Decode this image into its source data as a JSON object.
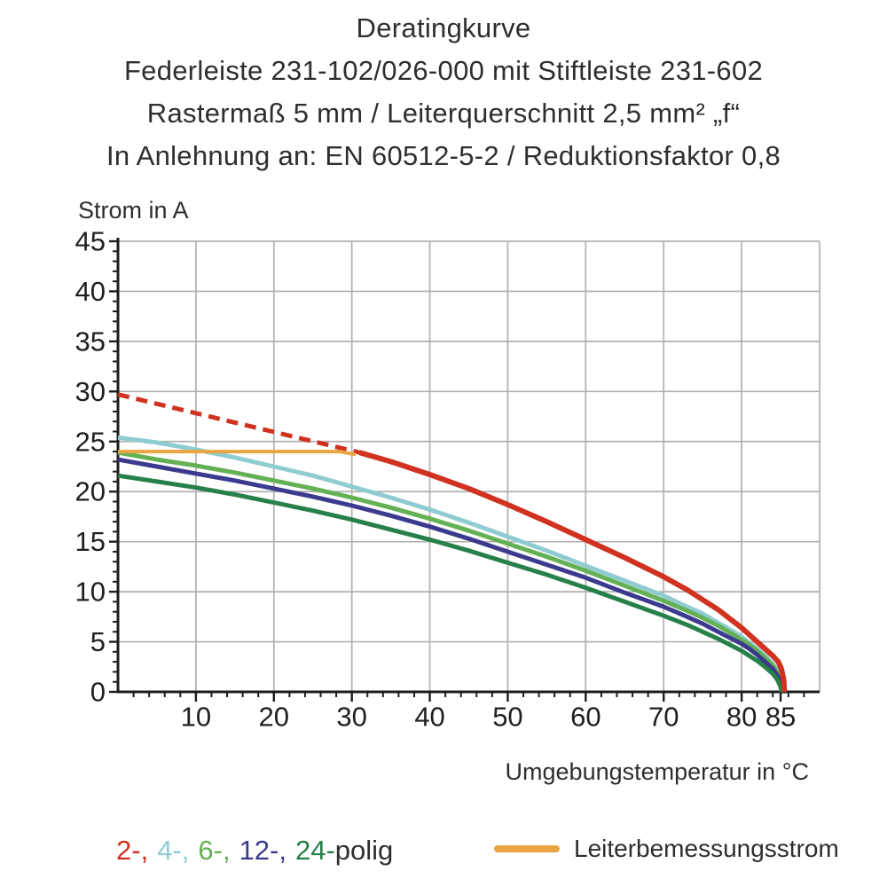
{
  "title": {
    "line1": "Deratingkurve",
    "line2": "Federleiste 231-102/026-000 mit Stiftleiste 231-602",
    "line3": "Rastermaß 5 mm / Leiterquerschnitt 2,5 mm² „f“",
    "line4": "In Anlehnung an: EN 60512-5-2 / Reduktionsfaktor 0,8"
  },
  "colors": {
    "pole2_red": "#d0321f",
    "pole4_cyan": "#8fccd1",
    "pole6_green": "#64b054",
    "pole12_navy": "#3b3a8e",
    "pole24_darkgreen": "#27804a",
    "rated_orange": "#eba442",
    "grid_gray": "#b0b0b0",
    "axis_black": "#1c1c1c"
  },
  "chart_data": {
    "type": "line",
    "title": "Deratingkurve",
    "xlabel": "Umgebungstemperatur in °C",
    "ylabel": "Strom in A",
    "xlim": [
      0,
      90
    ],
    "ylim": [
      0,
      45
    ],
    "grid": true,
    "x_major_ticks": [
      10,
      20,
      30,
      40,
      50,
      60,
      70,
      80,
      85
    ],
    "y_major_ticks": [
      0,
      5,
      10,
      15,
      20,
      25,
      30,
      35,
      40,
      45
    ],
    "x_minor_step": 2,
    "y_minor_step": 1,
    "series": [
      {
        "name": "2-polig-gestrichelt",
        "color": "#d0321f",
        "width": 5,
        "dash": "13 8",
        "points": [
          [
            0,
            29.7
          ],
          [
            31,
            23.9
          ]
        ]
      },
      {
        "name": "4-polig",
        "color": "#8fccd1",
        "width": 5,
        "dash": null,
        "points": [
          [
            0,
            25.4
          ],
          [
            5,
            24.9
          ],
          [
            10,
            24.2
          ],
          [
            15,
            23.4
          ],
          [
            20,
            22.5
          ],
          [
            25,
            21.6
          ],
          [
            30,
            20.5
          ],
          [
            35,
            19.4
          ],
          [
            40,
            18.2
          ],
          [
            45,
            16.9
          ],
          [
            50,
            15.5
          ],
          [
            55,
            14.1
          ],
          [
            60,
            12.6
          ],
          [
            65,
            11.1
          ],
          [
            70,
            9.6
          ],
          [
            73,
            8.5
          ],
          [
            75,
            7.8
          ],
          [
            77,
            6.9
          ],
          [
            79,
            6.0
          ],
          [
            80,
            5.5
          ],
          [
            81,
            4.9
          ],
          [
            82,
            4.3
          ],
          [
            83,
            3.6
          ],
          [
            84,
            2.8
          ],
          [
            84.6,
            2.1
          ],
          [
            85,
            1.4
          ],
          [
            85.25,
            0
          ]
        ]
      },
      {
        "name": "6-polig",
        "color": "#64b054",
        "width": 5,
        "dash": null,
        "points": [
          [
            0,
            23.9
          ],
          [
            5,
            23.2
          ],
          [
            10,
            22.6
          ],
          [
            15,
            21.9
          ],
          [
            20,
            21.1
          ],
          [
            25,
            20.3
          ],
          [
            30,
            19.4
          ],
          [
            35,
            18.4
          ],
          [
            40,
            17.3
          ],
          [
            45,
            16.1
          ],
          [
            50,
            14.8
          ],
          [
            55,
            13.5
          ],
          [
            60,
            12.1
          ],
          [
            65,
            10.6
          ],
          [
            70,
            9.1
          ],
          [
            73,
            8.1
          ],
          [
            75,
            7.4
          ],
          [
            77,
            6.6
          ],
          [
            79,
            5.7
          ],
          [
            80,
            5.2
          ],
          [
            81,
            4.7
          ],
          [
            82,
            4.1
          ],
          [
            83,
            3.4
          ],
          [
            84,
            2.6
          ],
          [
            84.6,
            1.9
          ],
          [
            85,
            1.2
          ],
          [
            85.2,
            0
          ]
        ]
      },
      {
        "name": "12-polig",
        "color": "#3b3a8e",
        "width": 5,
        "dash": null,
        "points": [
          [
            0,
            23.2
          ],
          [
            5,
            22.5
          ],
          [
            10,
            21.8
          ],
          [
            15,
            21.1
          ],
          [
            20,
            20.3
          ],
          [
            25,
            19.5
          ],
          [
            30,
            18.6
          ],
          [
            35,
            17.6
          ],
          [
            40,
            16.5
          ],
          [
            45,
            15.3
          ],
          [
            50,
            14.0
          ],
          [
            55,
            12.7
          ],
          [
            60,
            11.4
          ],
          [
            65,
            9.9
          ],
          [
            70,
            8.5
          ],
          [
            73,
            7.5
          ],
          [
            75,
            6.8
          ],
          [
            77,
            6.0
          ],
          [
            79,
            5.2
          ],
          [
            80,
            4.8
          ],
          [
            81,
            4.3
          ],
          [
            82,
            3.7
          ],
          [
            83,
            3.0
          ],
          [
            84,
            2.3
          ],
          [
            84.6,
            1.6
          ],
          [
            85,
            0.9
          ],
          [
            85.15,
            0
          ]
        ]
      },
      {
        "name": "24-polig",
        "color": "#27804a",
        "width": 5,
        "dash": null,
        "points": [
          [
            0,
            21.6
          ],
          [
            5,
            21.0
          ],
          [
            10,
            20.4
          ],
          [
            15,
            19.7
          ],
          [
            20,
            18.9
          ],
          [
            25,
            18.1
          ],
          [
            30,
            17.2
          ],
          [
            35,
            16.2
          ],
          [
            40,
            15.2
          ],
          [
            45,
            14.1
          ],
          [
            50,
            12.9
          ],
          [
            55,
            11.7
          ],
          [
            60,
            10.4
          ],
          [
            65,
            9.0
          ],
          [
            70,
            7.6
          ],
          [
            73,
            6.7
          ],
          [
            75,
            6.0
          ],
          [
            77,
            5.3
          ],
          [
            79,
            4.5
          ],
          [
            80,
            4.1
          ],
          [
            81,
            3.6
          ],
          [
            82,
            3.1
          ],
          [
            83,
            2.5
          ],
          [
            84,
            1.8
          ],
          [
            84.6,
            1.2
          ],
          [
            85,
            0.5
          ],
          [
            85.1,
            0
          ]
        ]
      },
      {
        "name": "Leiterbemessungsstrom",
        "color": "#eba442",
        "width": 4,
        "dash": null,
        "points": [
          [
            0,
            24
          ],
          [
            28.5,
            24
          ],
          [
            30.5,
            23.7
          ]
        ]
      },
      {
        "name": "2-polig",
        "color": "#d0321f",
        "width": 6,
        "dash": null,
        "points": [
          [
            31,
            23.9
          ],
          [
            35,
            23.0
          ],
          [
            40,
            21.7
          ],
          [
            45,
            20.3
          ],
          [
            50,
            18.7
          ],
          [
            55,
            17.0
          ],
          [
            60,
            15.2
          ],
          [
            65,
            13.4
          ],
          [
            70,
            11.5
          ],
          [
            73,
            10.2
          ],
          [
            75,
            9.2
          ],
          [
            77,
            8.2
          ],
          [
            79,
            7.0
          ],
          [
            80,
            6.4
          ],
          [
            81,
            5.7
          ],
          [
            82,
            5.0
          ],
          [
            83,
            4.3
          ],
          [
            84,
            3.6
          ],
          [
            84.7,
            3.0
          ],
          [
            85.1,
            2.3
          ],
          [
            85.4,
            1.2
          ],
          [
            85.5,
            0
          ]
        ]
      }
    ]
  },
  "legend": {
    "poles": {
      "items": [
        {
          "label": "2-,",
          "color": "#d0321f"
        },
        {
          "label": "4-,",
          "color": "#8fccd1"
        },
        {
          "label": "6-,",
          "color": "#64b054"
        },
        {
          "label": "12-,",
          "color": "#3b3a8e"
        },
        {
          "label": "24-",
          "color": "#27804a"
        }
      ],
      "suffix": "polig",
      "suffix_color": "#2e2e2e"
    },
    "rated": {
      "label": "Leiterbemessungsstrom",
      "swatch_color": "#eba442"
    }
  }
}
